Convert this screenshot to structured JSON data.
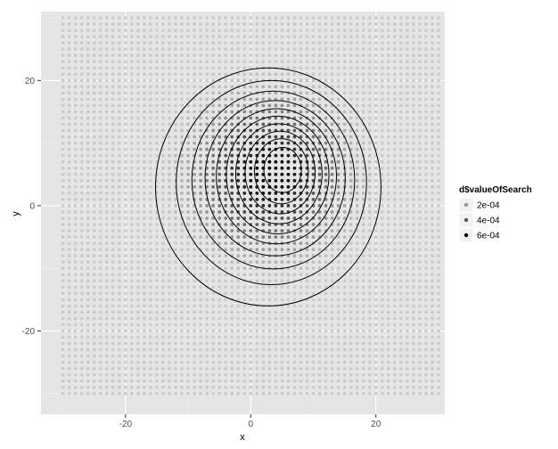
{
  "chart_data": {
    "type": "scatter",
    "title": "",
    "xlabel": "x",
    "ylabel": "y",
    "xlim": [
      -33.5,
      31
    ],
    "ylim": [
      -33.3,
      31
    ],
    "x_ticks": [
      -20,
      0,
      20
    ],
    "y_ticks": [
      -20,
      0,
      20
    ],
    "x_tick_labels": [
      "-20",
      "0",
      "20"
    ],
    "y_tick_labels": [
      "-20",
      "0",
      "20"
    ],
    "grid": true,
    "background": "#e5e5e5",
    "grid_color": "#ffffff",
    "points": {
      "grid_x_range": [
        -30,
        30
      ],
      "grid_y_range": [
        -30,
        30
      ],
      "step": 1,
      "color_variable": "d$valueOfSearch",
      "color_low": "#cccccc",
      "color_high": "#000000"
    },
    "density_peak": {
      "x": 3,
      "y": 5
    },
    "contour_levels": [
      {
        "cx": 2.8,
        "cy": 3.0,
        "rx": 18.0,
        "ry": 19.0
      },
      {
        "cx": 3.3,
        "cy": 3.7,
        "rx": 15.2,
        "ry": 16.3
      },
      {
        "cx": 3.6,
        "cy": 4.1,
        "rx": 13.0,
        "ry": 14.2
      },
      {
        "cx": 3.9,
        "cy": 4.4,
        "rx": 11.2,
        "ry": 12.4
      },
      {
        "cx": 4.1,
        "cy": 4.7,
        "rx": 9.6,
        "ry": 10.8
      },
      {
        "cx": 4.3,
        "cy": 4.9,
        "rx": 8.2,
        "ry": 9.4
      },
      {
        "cx": 4.5,
        "cy": 5.1,
        "rx": 6.9,
        "ry": 8.0
      },
      {
        "cx": 4.7,
        "cy": 5.3,
        "rx": 5.6,
        "ry": 6.6
      },
      {
        "cx": 4.9,
        "cy": 5.5,
        "rx": 4.3,
        "ry": 5.2
      },
      {
        "cx": 5.1,
        "cy": 5.7,
        "rx": 3.0,
        "ry": 3.6
      }
    ],
    "legend": {
      "title": "d$valueOfSearch",
      "position": "right",
      "entries": [
        {
          "label": "2e-04",
          "color": "#9a9a9a"
        },
        {
          "label": "4e-04",
          "color": "#555555"
        },
        {
          "label": "6e-04",
          "color": "#000000"
        }
      ]
    }
  }
}
